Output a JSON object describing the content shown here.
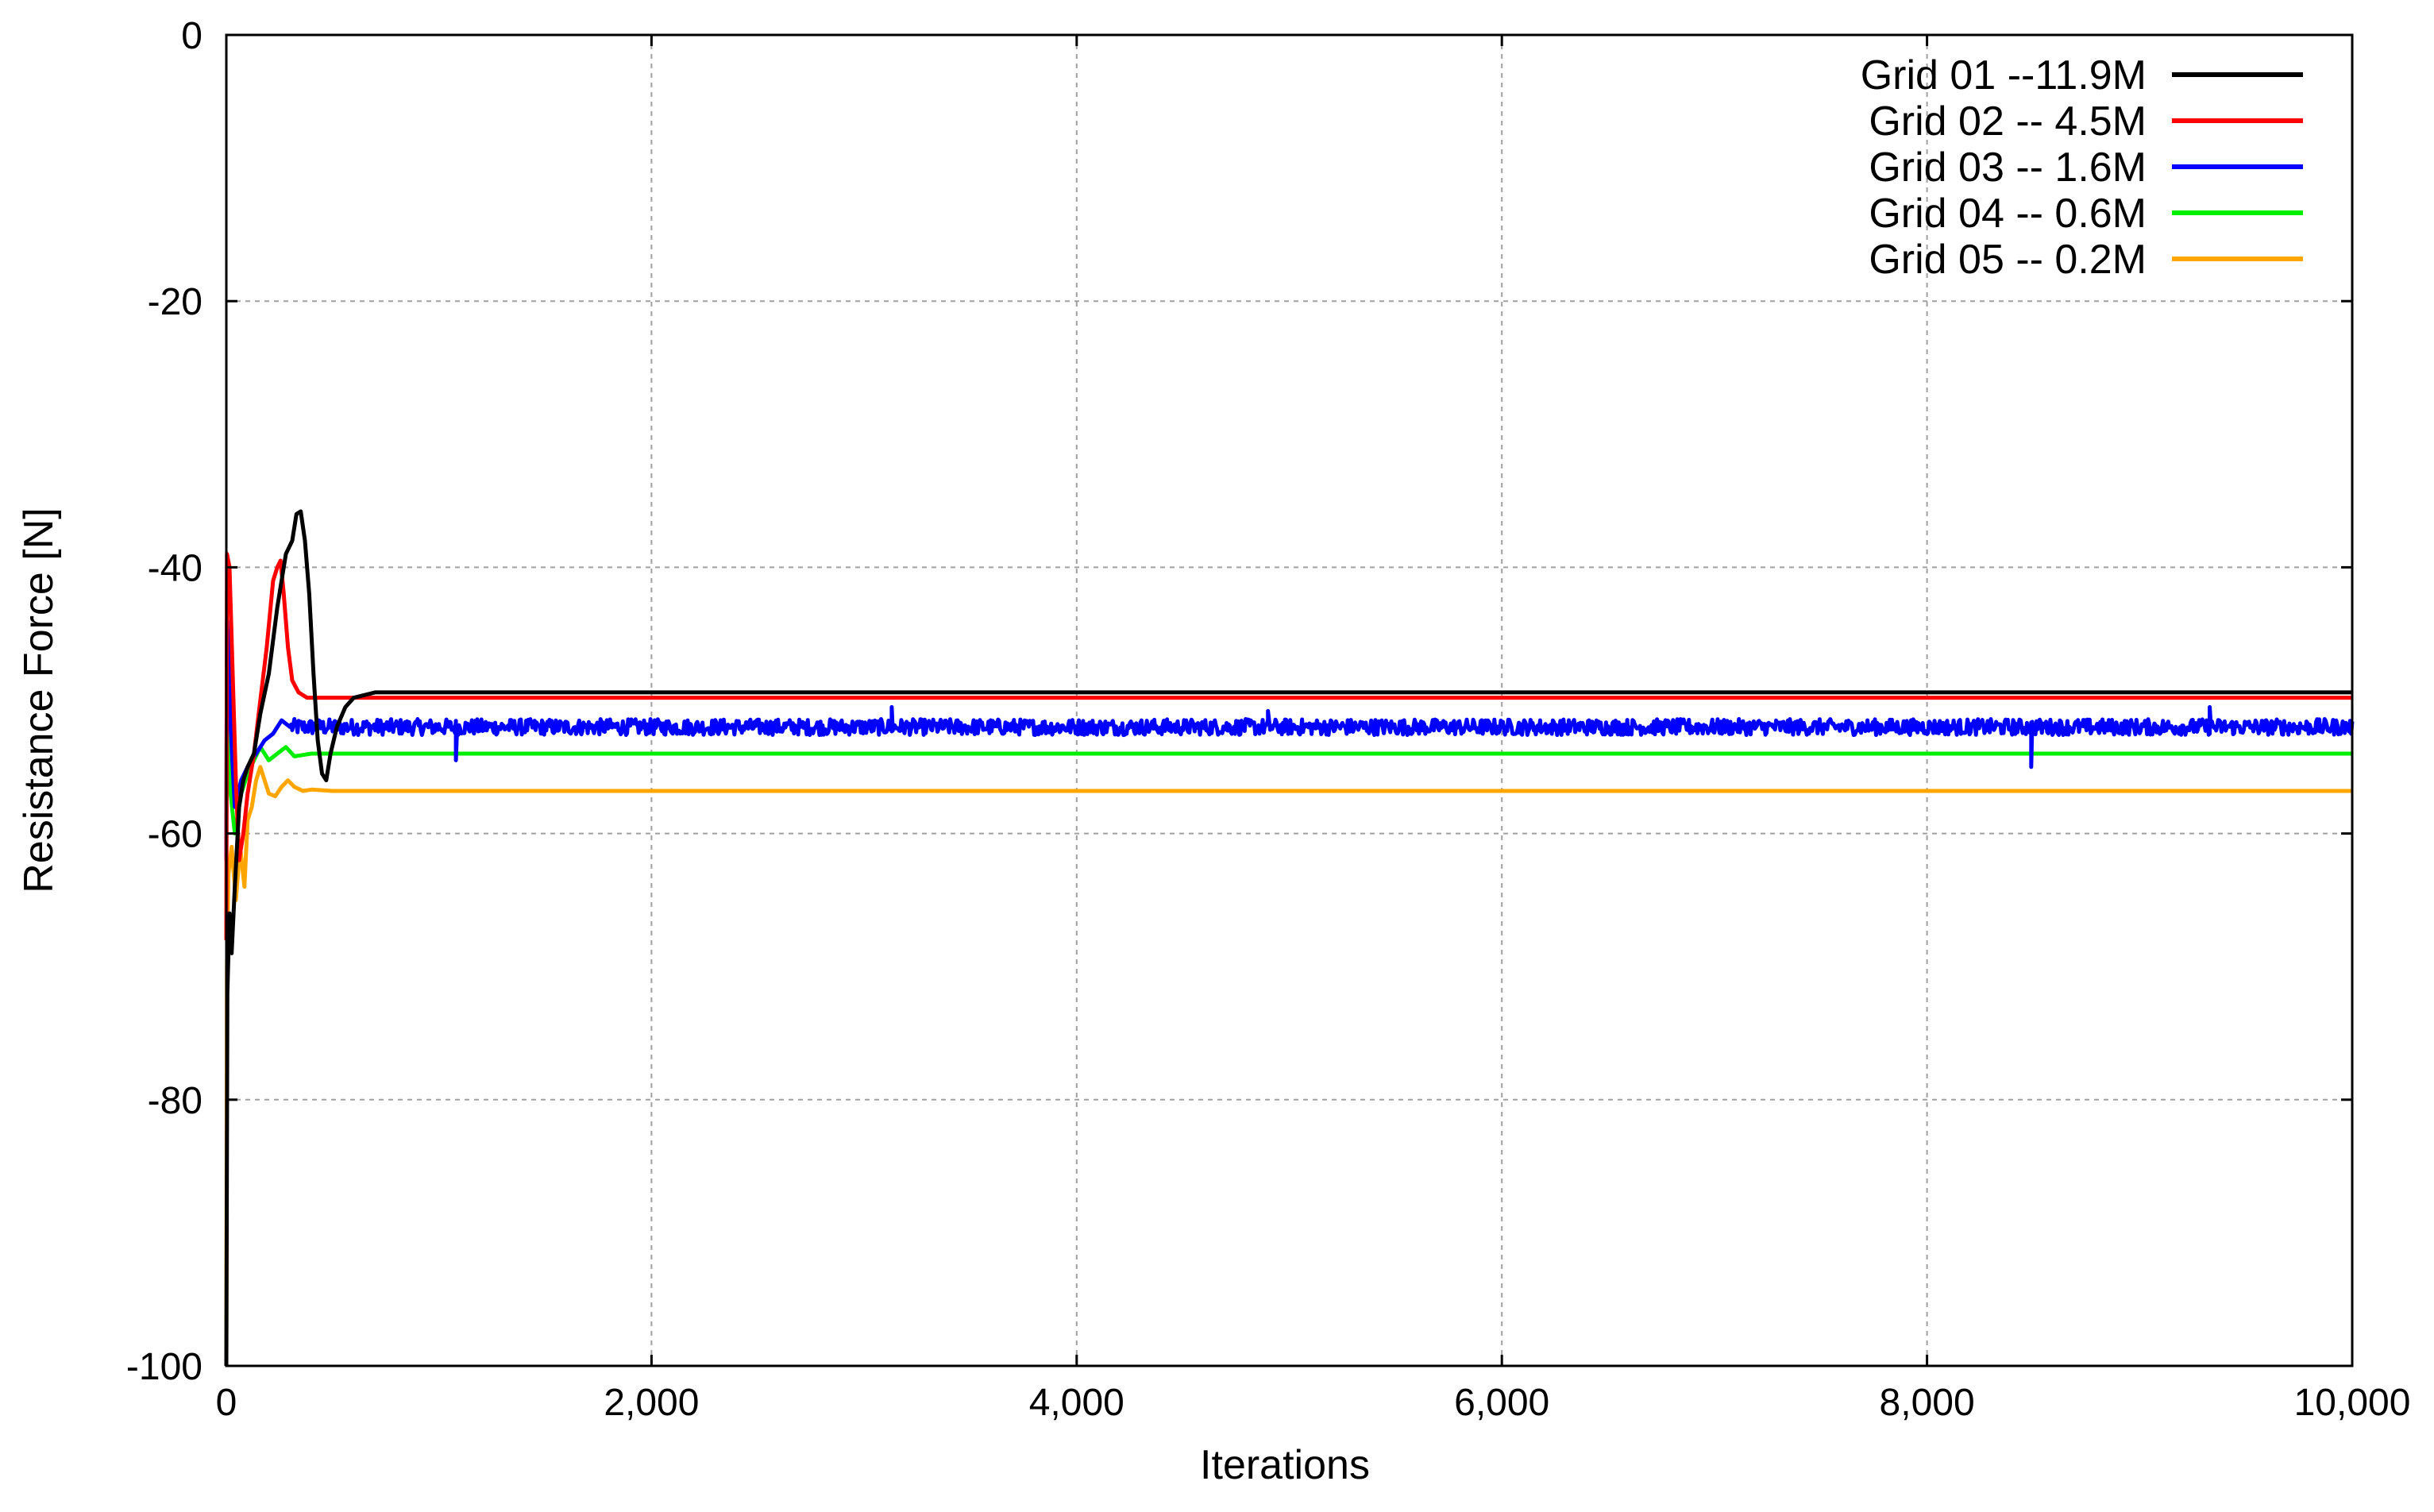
{
  "chart_data": {
    "type": "line",
    "title": "",
    "xlabel": "Iterations",
    "ylabel": "Resistance Force [N]",
    "xlim": [
      0,
      10000
    ],
    "ylim": [
      -100,
      0
    ],
    "x_ticks": [
      0,
      2000,
      4000,
      6000,
      8000,
      10000
    ],
    "x_tick_labels": [
      "0",
      "2,000",
      "4,000",
      "6,000",
      "8,000",
      "10,000"
    ],
    "y_ticks": [
      0,
      -20,
      -40,
      -60,
      -80,
      -100
    ],
    "y_tick_labels": [
      "0",
      "-20",
      "-40",
      "-60",
      "-80",
      "-100"
    ],
    "grid": true,
    "legend_position": "top-right",
    "series": [
      {
        "name": "Grid 01 --11.9M",
        "color": "#000000",
        "points": [
          [
            0,
            -100
          ],
          [
            5,
            -72
          ],
          [
            15,
            -66
          ],
          [
            25,
            -69
          ],
          [
            40,
            -64
          ],
          [
            60,
            -58
          ],
          [
            80,
            -56
          ],
          [
            100,
            -55
          ],
          [
            130,
            -54
          ],
          [
            160,
            -51
          ],
          [
            200,
            -48
          ],
          [
            240,
            -43
          ],
          [
            280,
            -39
          ],
          [
            310,
            -38
          ],
          [
            330,
            -36
          ],
          [
            350,
            -35.8
          ],
          [
            370,
            -38
          ],
          [
            390,
            -42
          ],
          [
            410,
            -48
          ],
          [
            430,
            -53
          ],
          [
            450,
            -55.5
          ],
          [
            470,
            -56
          ],
          [
            490,
            -54
          ],
          [
            520,
            -52
          ],
          [
            560,
            -50.5
          ],
          [
            600,
            -49.8
          ],
          [
            700,
            -49.4
          ],
          [
            1000,
            -49.4
          ],
          [
            2000,
            -49.4
          ],
          [
            4000,
            -49.4
          ],
          [
            6000,
            -49.4
          ],
          [
            8000,
            -49.4
          ],
          [
            10000,
            -49.4
          ]
        ]
      },
      {
        "name": "Grid 02 --  4.5M",
        "color": "#ff0000",
        "points": [
          [
            0,
            -68
          ],
          [
            3,
            -39
          ],
          [
            15,
            -40
          ],
          [
            30,
            -48
          ],
          [
            45,
            -56
          ],
          [
            60,
            -62
          ],
          [
            80,
            -60
          ],
          [
            100,
            -57
          ],
          [
            130,
            -54
          ],
          [
            160,
            -50
          ],
          [
            190,
            -46
          ],
          [
            220,
            -41
          ],
          [
            240,
            -40
          ],
          [
            255,
            -39.5
          ],
          [
            270,
            -42
          ],
          [
            290,
            -46
          ],
          [
            310,
            -48.5
          ],
          [
            340,
            -49.4
          ],
          [
            380,
            -49.8
          ],
          [
            500,
            -49.8
          ],
          [
            1000,
            -49.8
          ],
          [
            2000,
            -49.8
          ],
          [
            4000,
            -49.8
          ],
          [
            6000,
            -49.8
          ],
          [
            8000,
            -49.8
          ],
          [
            10000,
            -49.8
          ]
        ]
      },
      {
        "name": "Grid 03 --  1.6M",
        "color": "#0000ff",
        "points": [
          [
            0,
            -62
          ],
          [
            3,
            -44
          ],
          [
            10,
            -46
          ],
          [
            20,
            -52
          ],
          [
            40,
            -58
          ],
          [
            70,
            -56
          ],
          [
            100,
            -55
          ],
          [
            140,
            -54
          ],
          [
            180,
            -53
          ],
          [
            220,
            -52.5
          ],
          [
            260,
            -51.5
          ],
          [
            300,
            -52
          ],
          [
            400,
            -52
          ],
          [
            600,
            -52
          ],
          [
            1000,
            -52
          ],
          [
            2000,
            -52
          ],
          [
            4000,
            -52
          ],
          [
            6000,
            -52
          ],
          [
            8000,
            -52
          ],
          [
            10000,
            -52
          ]
        ],
        "noise_amplitude": 0.6,
        "noise_from": 300,
        "spikes": [
          [
            1080,
            -54.5
          ],
          [
            3130,
            -50.5
          ],
          [
            4900,
            -50.8
          ],
          [
            8490,
            -55
          ],
          [
            9330,
            -50.5
          ]
        ]
      },
      {
        "name": "Grid 04 --  0.6M",
        "color": "#00ee00",
        "points": [
          [
            0,
            -62
          ],
          [
            3,
            -45
          ],
          [
            10,
            -50
          ],
          [
            20,
            -57
          ],
          [
            40,
            -60
          ],
          [
            70,
            -57
          ],
          [
            100,
            -55.5
          ],
          [
            130,
            -54.5
          ],
          [
            160,
            -53.5
          ],
          [
            200,
            -54.5
          ],
          [
            240,
            -54
          ],
          [
            280,
            -53.5
          ],
          [
            320,
            -54.2
          ],
          [
            400,
            -54
          ],
          [
            600,
            -54
          ],
          [
            1000,
            -54
          ],
          [
            2000,
            -54
          ],
          [
            4000,
            -54
          ],
          [
            6000,
            -54
          ],
          [
            8000,
            -54
          ],
          [
            10000,
            -54
          ]
        ]
      },
      {
        "name": "Grid 05 --  0.2M",
        "color": "#ffa500",
        "points": [
          [
            0,
            -100
          ],
          [
            3,
            -70
          ],
          [
            10,
            -63
          ],
          [
            25,
            -61
          ],
          [
            45,
            -65
          ],
          [
            65,
            -61
          ],
          [
            85,
            -64
          ],
          [
            100,
            -59
          ],
          [
            120,
            -58
          ],
          [
            140,
            -56
          ],
          [
            160,
            -55
          ],
          [
            180,
            -56
          ],
          [
            200,
            -57
          ],
          [
            230,
            -57.2
          ],
          [
            260,
            -56.5
          ],
          [
            290,
            -56
          ],
          [
            320,
            -56.5
          ],
          [
            360,
            -56.8
          ],
          [
            400,
            -56.7
          ],
          [
            500,
            -56.8
          ],
          [
            1000,
            -56.8
          ],
          [
            2000,
            -56.8
          ],
          [
            4000,
            -56.8
          ],
          [
            6000,
            -56.8
          ],
          [
            8000,
            -56.8
          ],
          [
            10000,
            -56.8
          ]
        ]
      }
    ]
  }
}
